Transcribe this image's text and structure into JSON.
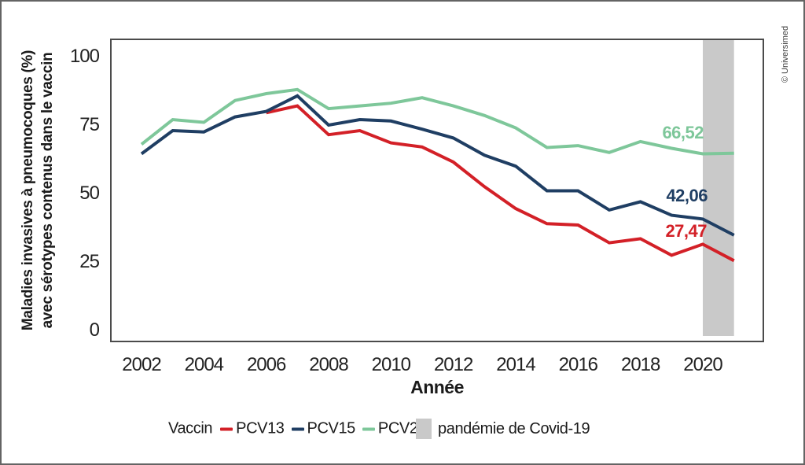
{
  "figure": {
    "copyright": "© Universimed"
  },
  "chart_data": {
    "type": "line",
    "xlabel": "Année",
    "ylabel": "Maladies invasives à pneumocoques (%) avec sérotypes contenus dans le vaccin",
    "ylabel_lines": [
      "Maladies invasives à pneumocoques (%)",
      "avec sérotypes contenus dans le vaccin"
    ],
    "years": [
      2002,
      2003,
      2004,
      2005,
      2006,
      2007,
      2008,
      2009,
      2010,
      2011,
      2012,
      2013,
      2014,
      2015,
      2016,
      2017,
      2018,
      2019,
      2020,
      2021
    ],
    "xticks": [
      "2002",
      "2004",
      "2006",
      "2008",
      "2010",
      "2012",
      "2014",
      "2016",
      "2018",
      "2020"
    ],
    "yticks": [
      0,
      25,
      50,
      75,
      100
    ],
    "ylim": [
      0,
      100
    ],
    "xlim": [
      2001,
      2022
    ],
    "grid": false,
    "legend_position": "bottom",
    "series": [
      {
        "name": "PCV13",
        "color": "#d32027",
        "start_year": 2006,
        "values": [
          79.5,
          82,
          71.5,
          73,
          68.5,
          67,
          61.5,
          52.5,
          44.5,
          39,
          38.5,
          32,
          33.5,
          27.47,
          31.5,
          25.5
        ]
      },
      {
        "name": "PCV15",
        "color": "#1f3e63",
        "start_year": 2002,
        "values": [
          64.5,
          73,
          72.5,
          78,
          80,
          85.7,
          75,
          77,
          76.5,
          73.5,
          70.3,
          64,
          60,
          51,
          51,
          44,
          47,
          42.06,
          40.7,
          34.8
        ]
      },
      {
        "name": "PCV20",
        "color": "#7ec79a",
        "start_year": 2002,
        "values": [
          68,
          77,
          76,
          84,
          86.5,
          88,
          81,
          82,
          83,
          85,
          82,
          78.5,
          74,
          66.8,
          67.5,
          65,
          69,
          66.52,
          64.5,
          64.7
        ]
      }
    ],
    "value_labels": [
      {
        "series": "PCV20",
        "text": "66,52"
      },
      {
        "series": "PCV15",
        "text": "42,06"
      },
      {
        "series": "PCV13",
        "text": "27,47"
      }
    ],
    "band": {
      "label": "pandémie de Covid-19",
      "x_start": 2020,
      "x_end": 2021,
      "color": "#c9c9c9"
    }
  },
  "legend": {
    "title": "Vaccin",
    "items": [
      {
        "label": "PCV13",
        "color": "#d32027"
      },
      {
        "label": "PCV15",
        "color": "#1f3e63"
      },
      {
        "label": "PCV20",
        "color": "#7ec79a"
      }
    ],
    "band_label": "pandémie de Covid-19"
  }
}
